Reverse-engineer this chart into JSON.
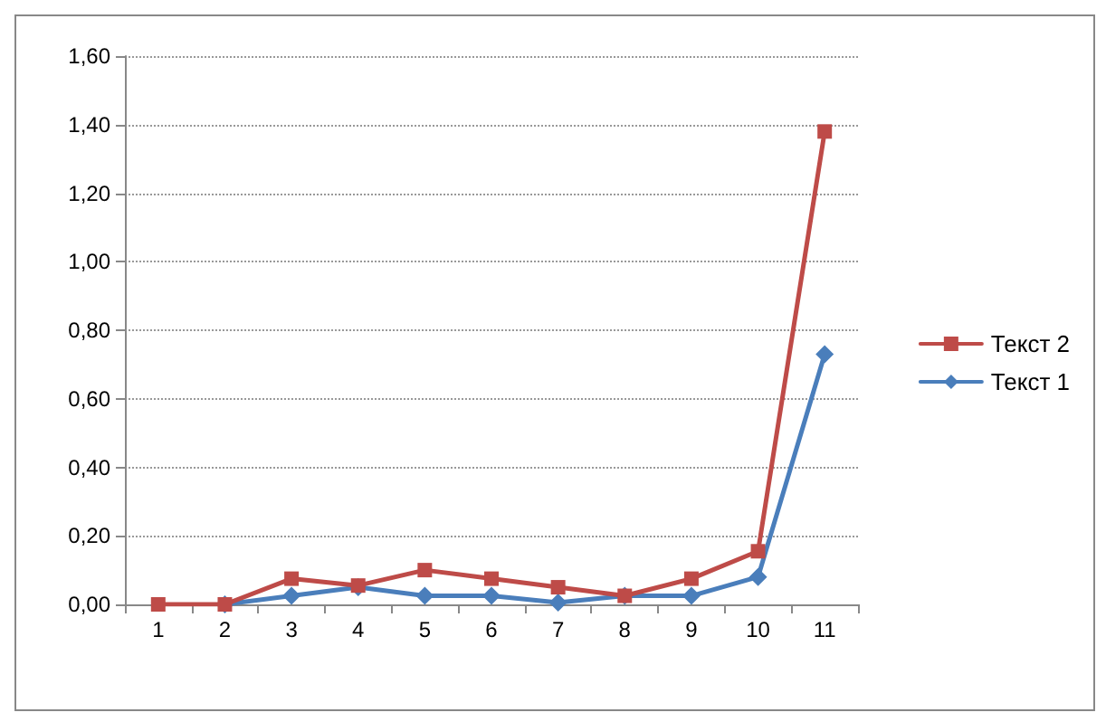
{
  "chart_data": {
    "type": "line",
    "categories": [
      "1",
      "2",
      "3",
      "4",
      "5",
      "6",
      "7",
      "8",
      "9",
      "10",
      "11"
    ],
    "series": [
      {
        "name": "Текст 2",
        "color": "#be4b48",
        "marker": "square",
        "values": [
          0,
          0,
          0.075,
          0.055,
          0.1,
          0.075,
          0.05,
          0.025,
          0.075,
          0.155,
          1.38
        ]
      },
      {
        "name": "Текст 1",
        "color": "#4a7ebb",
        "marker": "diamond",
        "values": [
          null,
          0,
          0.025,
          0.05,
          0.025,
          0.025,
          0.005,
          0.025,
          0.025,
          0.08,
          0.73
        ]
      }
    ],
    "ylim": [
      0,
      1.6
    ],
    "yticks": [
      {
        "value": 0,
        "label": "0,00"
      },
      {
        "value": 0.2,
        "label": "0,20"
      },
      {
        "value": 0.4,
        "label": "0,40"
      },
      {
        "value": 0.6,
        "label": "0,60"
      },
      {
        "value": 0.8,
        "label": "0,80"
      },
      {
        "value": 1,
        "label": "1,00"
      },
      {
        "value": 1.2,
        "label": "1,20"
      },
      {
        "value": 1.4,
        "label": "1,40"
      },
      {
        "value": 1.6,
        "label": "1,60"
      }
    ],
    "grid": "y",
    "legend": "right",
    "line_style": "solid"
  }
}
